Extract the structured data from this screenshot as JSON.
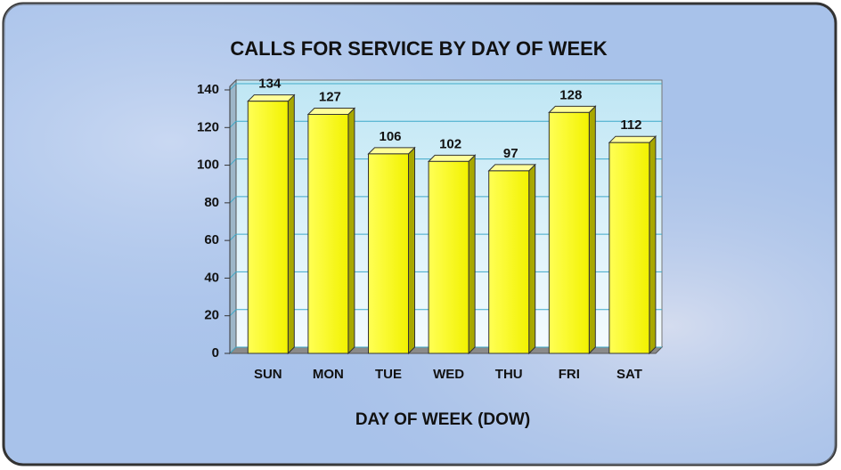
{
  "chart_data": {
    "type": "bar",
    "title": "CALLS FOR SERVICE BY DAY OF WEEK",
    "x_label": "DAY OF WEEK (DOW)",
    "categories": [
      "SUN",
      "MON",
      "TUE",
      "WED",
      "THU",
      "FRI",
      "SAT"
    ],
    "values": [
      134,
      127,
      106,
      102,
      97,
      128,
      112
    ],
    "color": "#ffff33",
    "ylim": [
      0,
      140
    ],
    "yticks": [
      0,
      20,
      40,
      60,
      80,
      100,
      120,
      140
    ],
    "grid": true
  }
}
